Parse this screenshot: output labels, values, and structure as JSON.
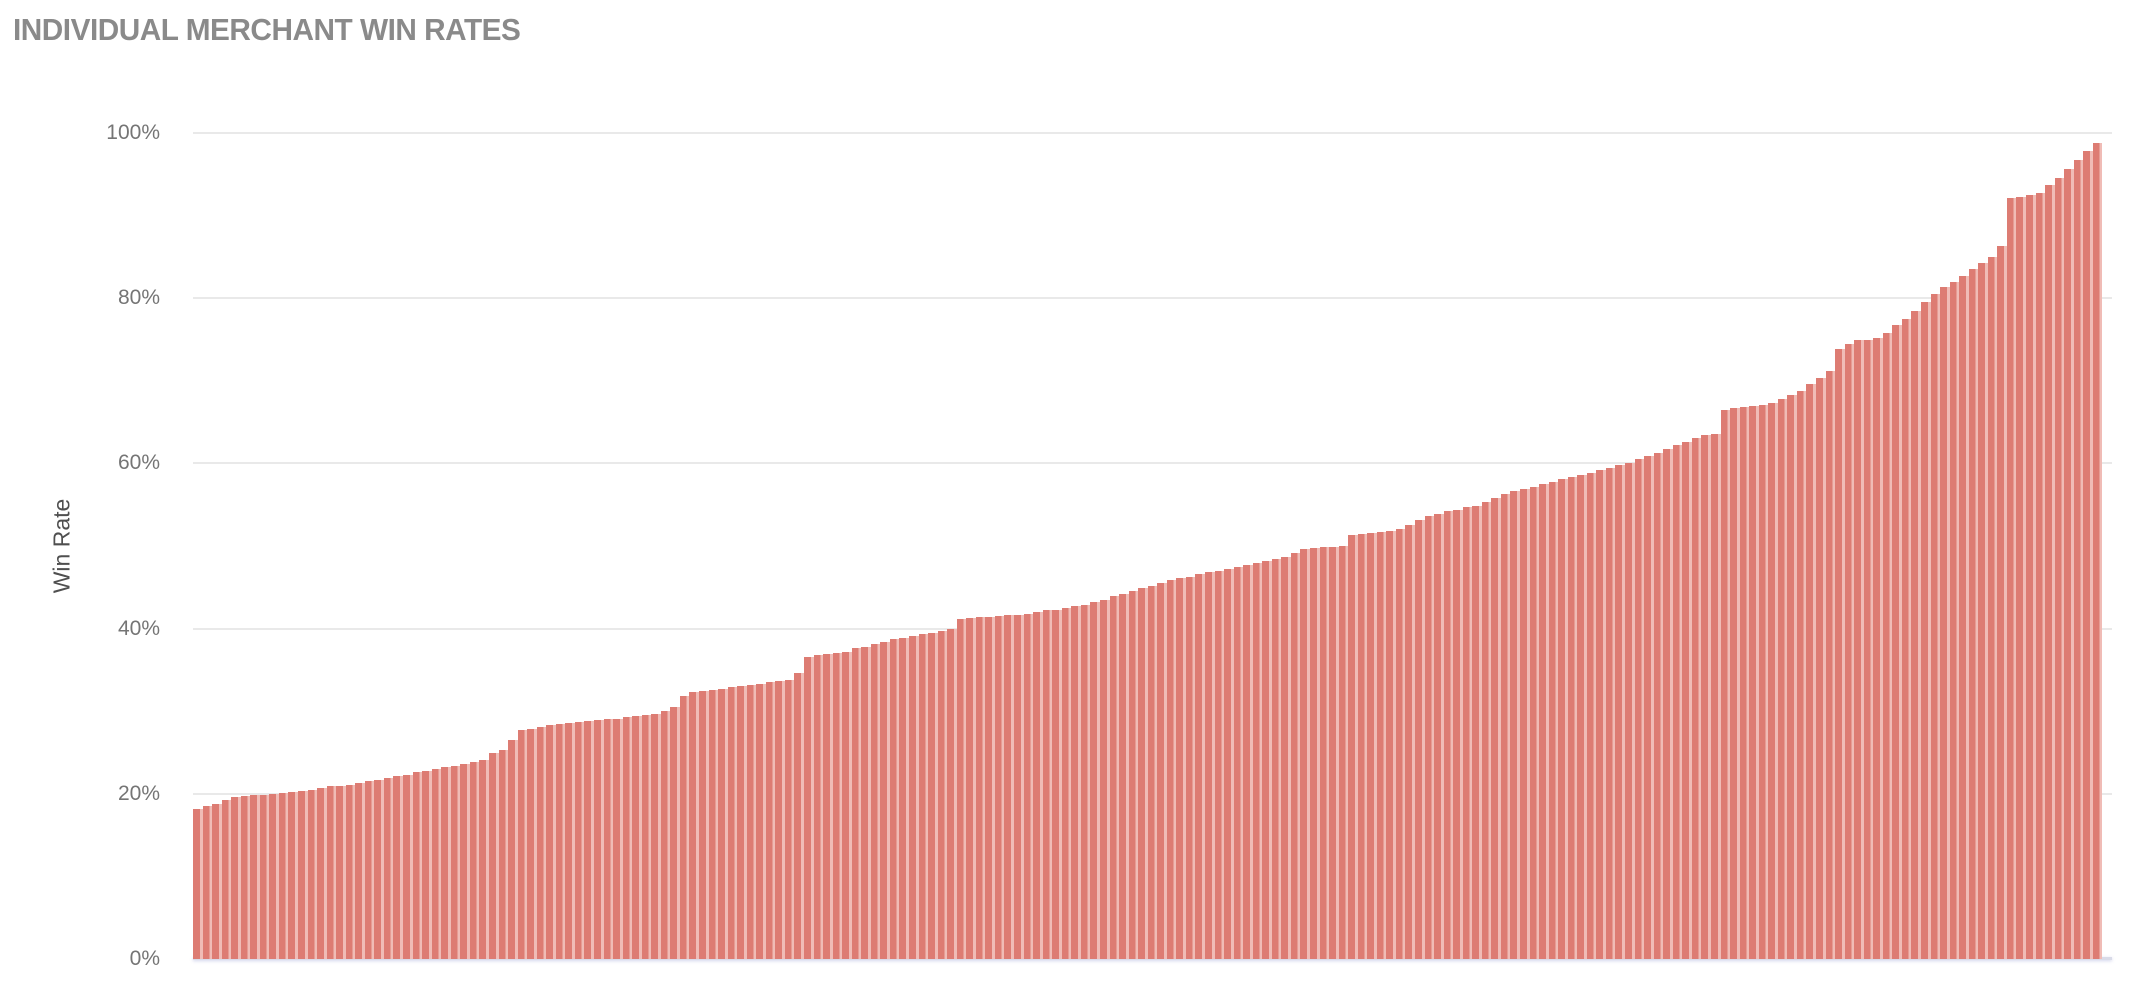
{
  "header": {
    "title": "INDIVIDUAL MERCHANT WIN RATES",
    "title_color": "#8a8a8a"
  },
  "chart_data": {
    "type": "bar",
    "title": "INDIVIDUAL MERCHANT WIN RATES",
    "xlabel": "",
    "ylabel": "Win Rate",
    "ylim": [
      0,
      100
    ],
    "y_ticks": [
      "0%",
      "20%",
      "40%",
      "60%",
      "80%",
      "100%"
    ],
    "y_tick_values": [
      0,
      20,
      40,
      60,
      80,
      100
    ],
    "grid": "horizontal",
    "legend_position": "none",
    "x_tick_labels_visible": false,
    "sort_order": "ascending",
    "unit": "percent",
    "num_bars": 200,
    "colors": {
      "bar_fill": "#dd7c73",
      "bar_separator": "#f0bcb6",
      "gridline": "#e9e9e9",
      "baseline": "#d9dbe8",
      "tick_label": "#757575",
      "axis_title": "#4f4f4f",
      "title": "#8a8a8a"
    },
    "values": [
      18.2,
      18.5,
      18.8,
      19.3,
      19.6,
      19.7,
      19.8,
      19.9,
      20.0,
      20.1,
      20.2,
      20.4,
      20.5,
      20.7,
      20.9,
      21.0,
      21.1,
      21.3,
      21.5,
      21.7,
      21.9,
      22.1,
      22.3,
      22.6,
      22.8,
      23.0,
      23.2,
      23.4,
      23.6,
      23.8,
      24.1,
      24.9,
      25.3,
      26.5,
      27.7,
      27.9,
      28.1,
      28.3,
      28.4,
      28.6,
      28.7,
      28.8,
      28.9,
      29.0,
      29.1,
      29.3,
      29.4,
      29.5,
      29.7,
      30.0,
      30.5,
      31.9,
      32.3,
      32.4,
      32.6,
      32.7,
      32.9,
      33.0,
      33.2,
      33.3,
      33.5,
      33.7,
      33.8,
      34.6,
      36.6,
      36.8,
      36.9,
      37.1,
      37.2,
      37.6,
      37.8,
      38.1,
      38.4,
      38.7,
      38.9,
      39.1,
      39.3,
      39.5,
      39.7,
      40.0,
      41.2,
      41.3,
      41.4,
      41.4,
      41.5,
      41.6,
      41.7,
      41.8,
      42.0,
      42.2,
      42.3,
      42.5,
      42.7,
      42.9,
      43.2,
      43.5,
      43.9,
      44.2,
      44.5,
      44.9,
      45.2,
      45.5,
      45.9,
      46.1,
      46.3,
      46.6,
      46.8,
      47.0,
      47.2,
      47.4,
      47.7,
      47.9,
      48.2,
      48.4,
      48.7,
      49.1,
      49.6,
      49.8,
      49.9,
      49.9,
      50.0,
      51.3,
      51.5,
      51.6,
      51.7,
      51.8,
      52.0,
      52.6,
      53.2,
      53.6,
      53.9,
      54.2,
      54.4,
      54.7,
      54.9,
      55.3,
      55.8,
      56.3,
      56.6,
      56.9,
      57.1,
      57.5,
      57.8,
      58.1,
      58.4,
      58.6,
      58.9,
      59.2,
      59.4,
      59.8,
      60.1,
      60.5,
      60.9,
      61.3,
      61.8,
      62.2,
      62.6,
      63.1,
      63.4,
      63.6,
      66.5,
      66.7,
      66.8,
      67.0,
      67.1,
      67.3,
      67.8,
      68.3,
      68.8,
      69.6,
      70.4,
      71.2,
      73.9,
      74.5,
      74.9,
      75.0,
      75.2,
      75.8,
      76.7,
      77.5,
      78.4,
      79.5,
      80.5,
      81.3,
      82.0,
      82.7,
      83.5,
      84.3,
      85.0,
      86.3,
      92.1,
      92.3,
      92.5,
      92.7,
      93.7,
      94.6,
      95.6,
      96.7,
      97.8,
      98.8
    ]
  }
}
